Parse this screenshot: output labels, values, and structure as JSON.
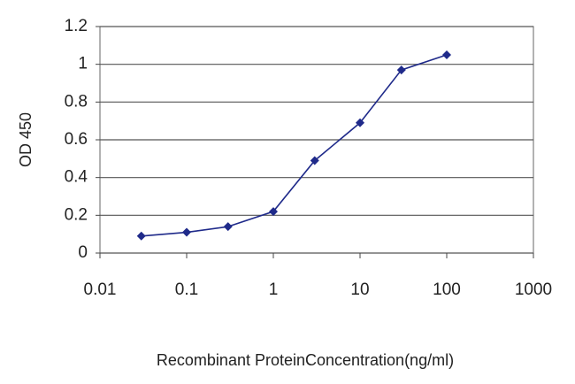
{
  "chart_data": {
    "type": "line",
    "x_label": "Recombinant ProteinConcentration(ng/ml)",
    "y_label": "OD 450",
    "x": [
      0.03,
      0.1,
      0.3,
      1,
      3,
      10,
      30,
      100
    ],
    "values": [
      0.09,
      0.11,
      0.14,
      0.22,
      0.49,
      0.69,
      0.97,
      1.05
    ],
    "color": "#1f2a8a",
    "marker": "diamond",
    "xscale": "log",
    "xlim": [
      0.01,
      1000
    ],
    "xticks": [
      0.01,
      0.1,
      1,
      10,
      100,
      1000
    ],
    "ylim": [
      0,
      1.2
    ],
    "yticks": [
      0,
      0.2,
      0.4,
      0.6,
      0.8,
      1,
      1.2
    ],
    "grid": true
  }
}
